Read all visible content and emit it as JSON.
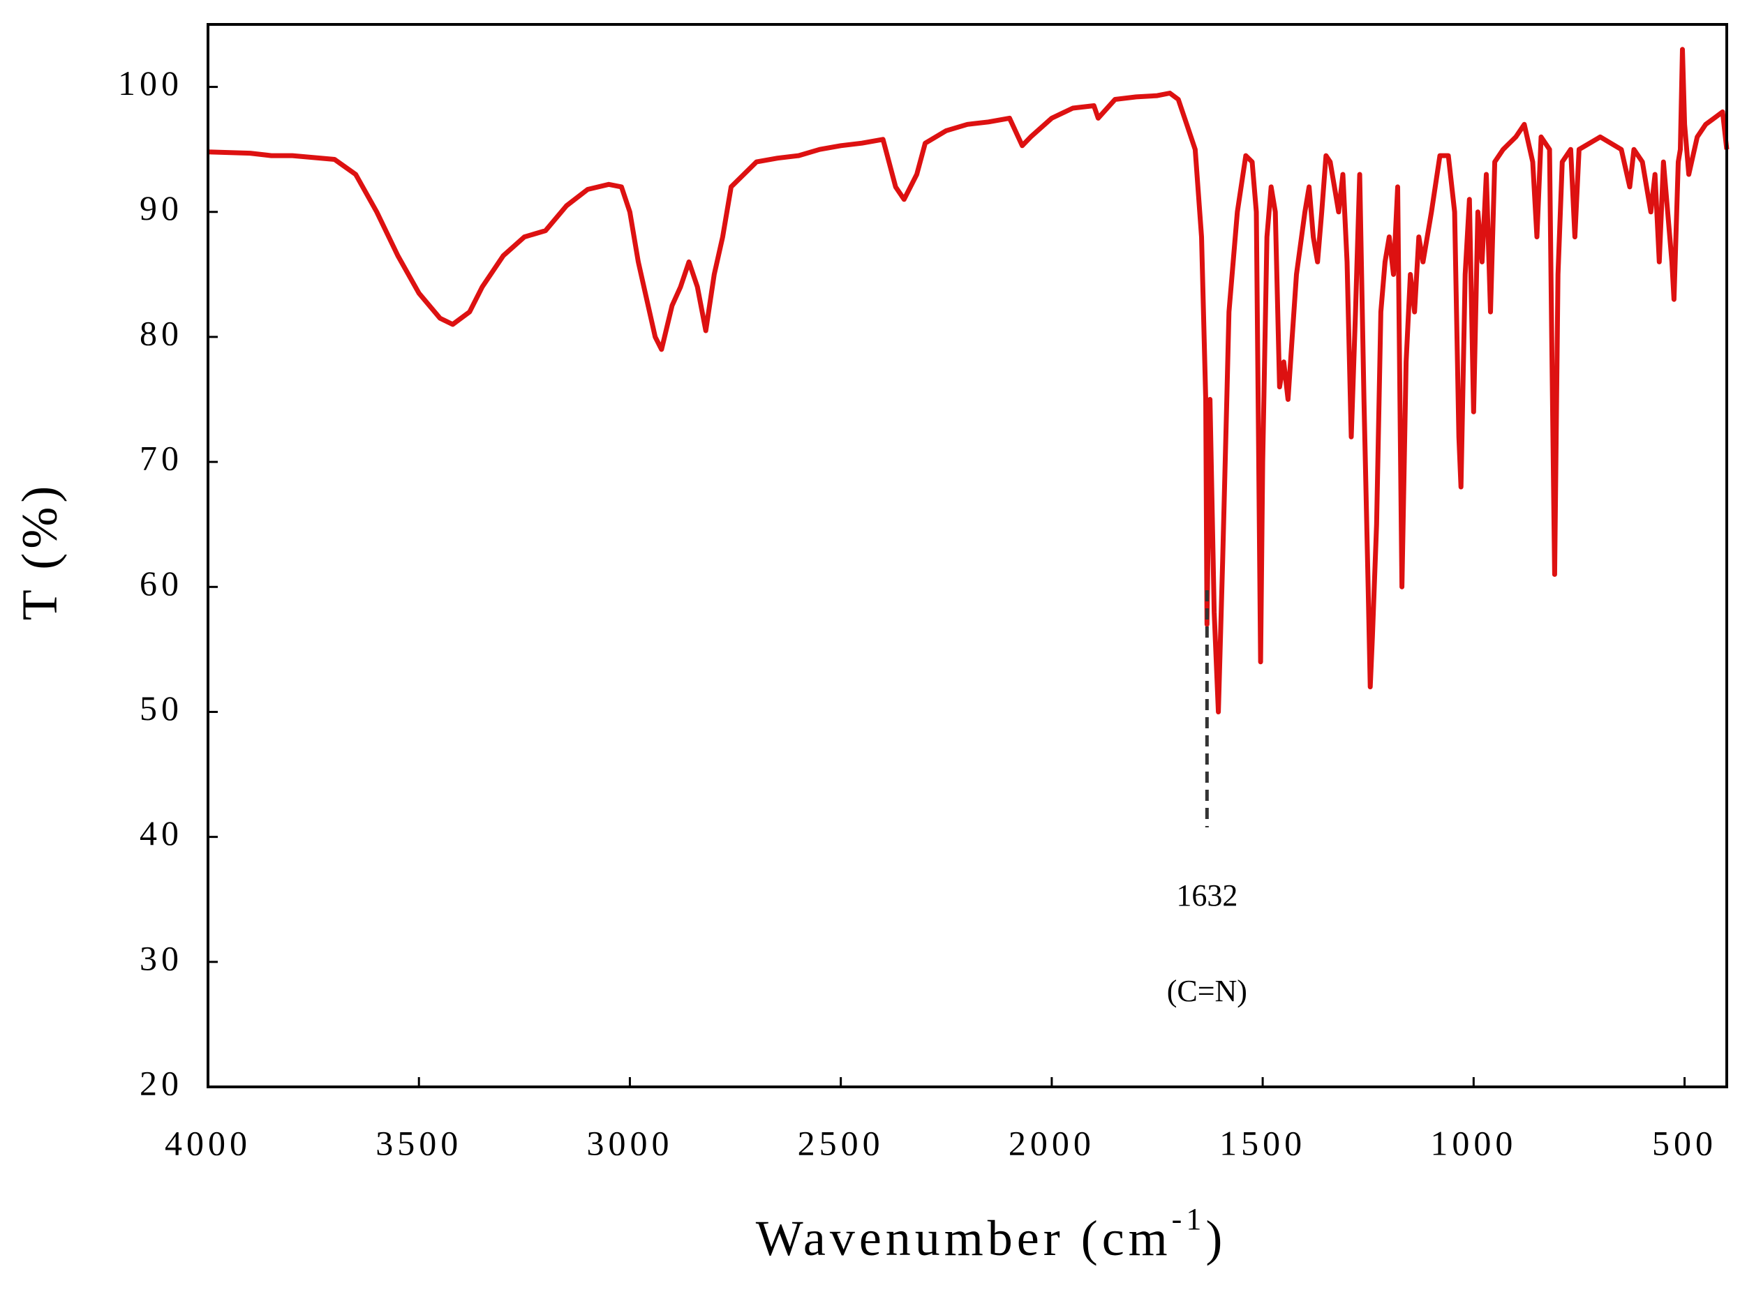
{
  "chart_data": {
    "type": "line",
    "xlabel": {
      "text": "Wavenumber (cm",
      "superscript": "-1",
      "suffix": ")"
    },
    "ylabel": "T (%)",
    "color": "#dd1111",
    "xlim": [
      4000,
      400
    ],
    "ylim": [
      20,
      105
    ],
    "xticks": [
      4000,
      3500,
      3000,
      2500,
      2000,
      1500,
      1000,
      500
    ],
    "yticks": [
      20,
      30,
      40,
      50,
      60,
      70,
      80,
      90,
      100
    ],
    "annotations": [
      {
        "x": 1632,
        "note": "(C=N)"
      }
    ],
    "x": [
      4000,
      3900,
      3850,
      3800,
      3700,
      3650,
      3600,
      3550,
      3500,
      3450,
      3420,
      3380,
      3350,
      3300,
      3250,
      3200,
      3150,
      3100,
      3050,
      3020,
      3000,
      2980,
      2960,
      2940,
      2925,
      2900,
      2880,
      2860,
      2840,
      2820,
      2800,
      2780,
      2760,
      2700,
      2650,
      2600,
      2550,
      2500,
      2450,
      2400,
      2370,
      2350,
      2320,
      2300,
      2250,
      2200,
      2150,
      2100,
      2070,
      2050,
      2000,
      1950,
      1900,
      1890,
      1850,
      1800,
      1750,
      1720,
      1700,
      1680,
      1660,
      1645,
      1635,
      1632,
      1625,
      1615,
      1605,
      1595,
      1585,
      1580,
      1560,
      1540,
      1525,
      1515,
      1510,
      1505,
      1500,
      1490,
      1480,
      1470,
      1460,
      1450,
      1440,
      1430,
      1420,
      1400,
      1390,
      1380,
      1370,
      1360,
      1350,
      1340,
      1330,
      1320,
      1310,
      1300,
      1290,
      1280,
      1270,
      1260,
      1250,
      1245,
      1240,
      1230,
      1220,
      1210,
      1200,
      1190,
      1180,
      1170,
      1160,
      1150,
      1140,
      1130,
      1120,
      1100,
      1080,
      1060,
      1045,
      1035,
      1030,
      1020,
      1010,
      1000,
      990,
      980,
      970,
      960,
      950,
      930,
      900,
      880,
      860,
      850,
      840,
      820,
      815,
      808,
      800,
      790,
      770,
      760,
      750,
      700,
      650,
      630,
      620,
      600,
      580,
      570,
      560,
      550,
      530,
      525,
      515,
      510,
      505,
      500,
      490,
      470,
      450,
      430,
      410,
      400
    ],
    "values": [
      94.8,
      94.7,
      94.5,
      94.5,
      94.2,
      93,
      90,
      86.5,
      83.5,
      81.5,
      81,
      82,
      84,
      86.5,
      88,
      88.5,
      90.5,
      91.8,
      92.2,
      92,
      90,
      86,
      83,
      80,
      79,
      82.5,
      84,
      86,
      84,
      80.5,
      85,
      88,
      92,
      94,
      94.3,
      94.5,
      95,
      95.3,
      95.5,
      95.8,
      92,
      91,
      93,
      95.5,
      96.5,
      97,
      97.2,
      97.5,
      95.3,
      96,
      97.5,
      98.3,
      98.5,
      97.5,
      99,
      99.2,
      99.3,
      99.5,
      99,
      97,
      95,
      88,
      75,
      57,
      75,
      58,
      50,
      62,
      75,
      82,
      90,
      94.5,
      94,
      90,
      72,
      54,
      70,
      88,
      92,
      90,
      76,
      78,
      75,
      80,
      85,
      90,
      92,
      88,
      86,
      90,
      94.5,
      94,
      92,
      90,
      93,
      86,
      72,
      82,
      93,
      75,
      60,
      52,
      56,
      65,
      82,
      86,
      88,
      85,
      92,
      60,
      78,
      85,
      82,
      88,
      86,
      90,
      94.5,
      94.5,
      90,
      72,
      68,
      85,
      91,
      74,
      90,
      86,
      93,
      82,
      94,
      95,
      96,
      97,
      94,
      88,
      96,
      95,
      80,
      61,
      85,
      94,
      95,
      88,
      95,
      96,
      95,
      92,
      95,
      94,
      90,
      93,
      86,
      94,
      86,
      83,
      94,
      95,
      103,
      97,
      93,
      96,
      97,
      97.5,
      98,
      95
    ]
  }
}
